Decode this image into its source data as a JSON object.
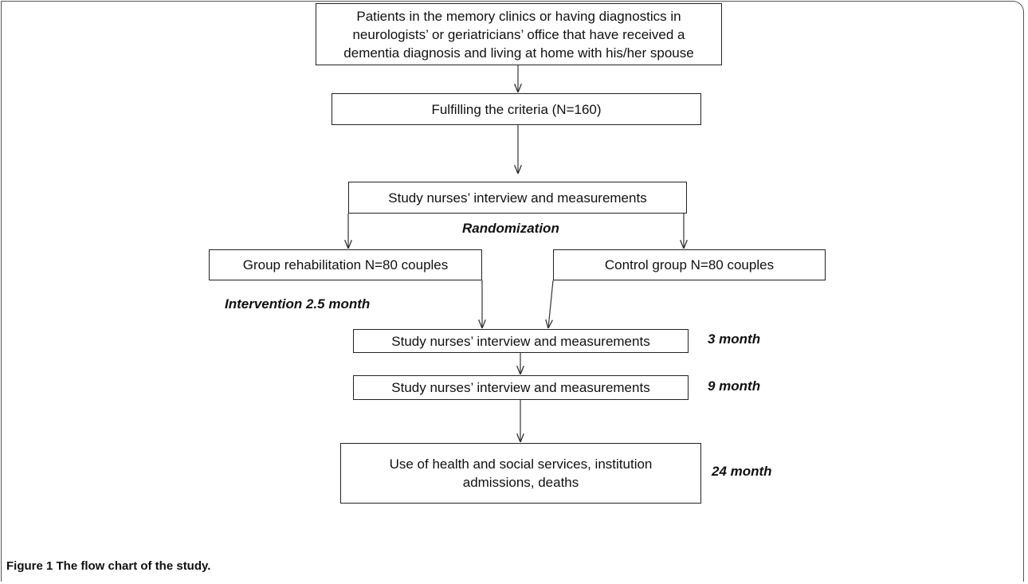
{
  "nodes": [
    {
      "lines": [
        "Patients in the memory clinics or having diagnostics in",
        "neurologists’ or geriatricians’ office that have received a",
        "dementia diagnosis and living at home with his/her spouse"
      ]
    },
    {
      "lines": [
        "Fulfilling the criteria (N=160)"
      ]
    },
    {
      "lines": [
        "Study nurses’ interview and measurements"
      ]
    },
    {
      "lines": [
        "Group rehabilitation N=80 couples"
      ]
    },
    {
      "lines": [
        "Control group N=80 couples"
      ]
    },
    {
      "lines": [
        "Study nurses’ interview and measurements"
      ]
    },
    {
      "lines": [
        "Study nurses’ interview and measurements"
      ]
    },
    {
      "lines": [
        "Use of health and social services, institution",
        "admissions, deaths"
      ]
    }
  ],
  "notes": [
    "Randomization",
    "Intervention 2.5 month",
    "3 month",
    "9 month",
    "24 month"
  ],
  "caption": "Figure 1 The flow chart of the study."
}
